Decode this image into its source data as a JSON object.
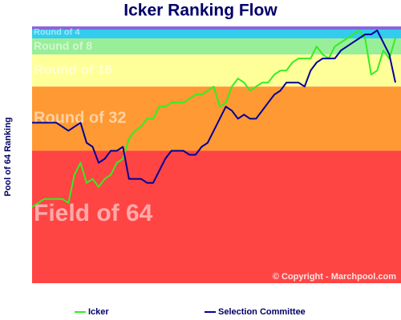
{
  "chart_data": {
    "type": "line",
    "title": "Icker Ranking Flow",
    "y_label": "Pool of 64 Ranking",
    "credit": "© Copyright - Marchpool.com",
    "ylim": [
      65,
      1
    ],
    "bands": [
      {
        "label": "Round of 4",
        "to": 4,
        "color": "#33ccee"
      },
      {
        "label": "Round of 8",
        "to": 8,
        "color": "#99ee99"
      },
      {
        "label": "Round of 16",
        "to": 16,
        "color": "#ffff99"
      },
      {
        "label": "Round of 32",
        "to": 32,
        "color": "#ff9933"
      },
      {
        "label": "Field of 64",
        "to": 65,
        "color": "#ff4444"
      }
    ],
    "series": [
      {
        "name": "Icker",
        "color": "#33ee22",
        "values": [
          46,
          45,
          44,
          44,
          44,
          44,
          45,
          38,
          35,
          40,
          39,
          41,
          39,
          38,
          35,
          34,
          29,
          27,
          26,
          24,
          24,
          21,
          21,
          20,
          20,
          20,
          19,
          18,
          18,
          17,
          16,
          21,
          20,
          16,
          14,
          15,
          17,
          16,
          15,
          15,
          13,
          12,
          12,
          10,
          9,
          9,
          9,
          6,
          8,
          9,
          6,
          5,
          4,
          3,
          2,
          4,
          13,
          12,
          7,
          9,
          4
        ]
      },
      {
        "name": "Selection Committee",
        "color": "#000099",
        "values": [
          25,
          25,
          25,
          25,
          25,
          26,
          27,
          26,
          25,
          30,
          31,
          35,
          34,
          32,
          32,
          31,
          39,
          39,
          39,
          40,
          40,
          37,
          34,
          32,
          32,
          32,
          33,
          33,
          31,
          30,
          27,
          24,
          21,
          22,
          24,
          23,
          24,
          24,
          22,
          20,
          18,
          17,
          15,
          15,
          15,
          16,
          12,
          10,
          9,
          9,
          9,
          7,
          6,
          5,
          4,
          3,
          3,
          2,
          5,
          8,
          15
        ]
      }
    ]
  }
}
